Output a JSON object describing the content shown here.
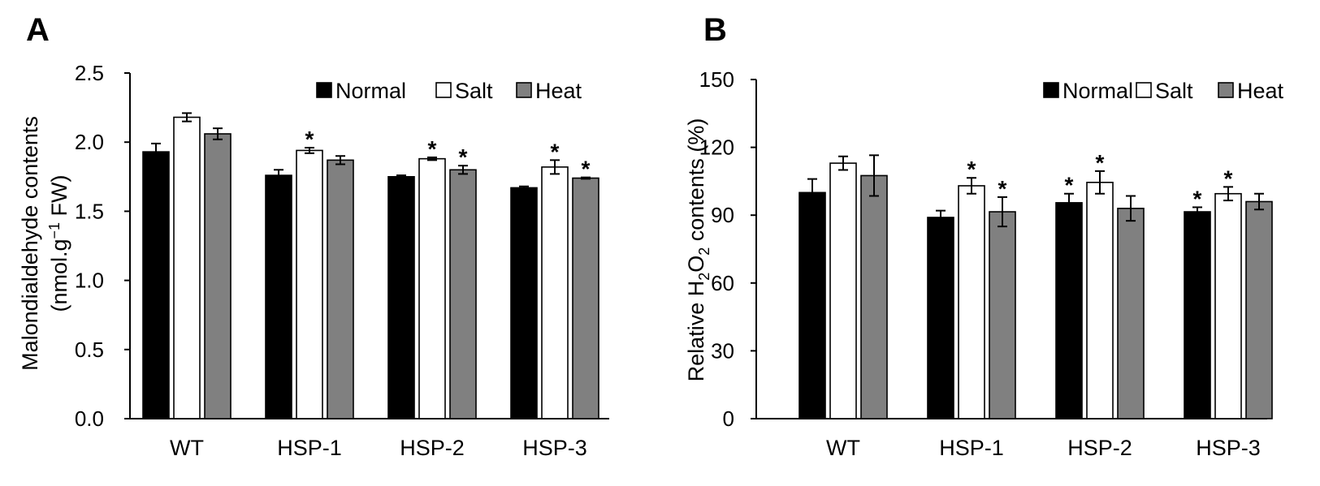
{
  "chart_data": [
    {
      "type": "bar",
      "panel_label": "A",
      "title": "",
      "categories": [
        "WT",
        "HSP-1",
        "HSP-2",
        "HSP-3"
      ],
      "xlabel": "",
      "ylabel_line1": "Malondialdehyde contents",
      "ylabel_line2_pre": "(nmol.g",
      "ylabel_line2_sup": "−1",
      "ylabel_line2_post": " FW)",
      "ylim": [
        0,
        2.5
      ],
      "yticks": [
        0,
        0.5,
        1.0,
        1.5,
        2.0,
        2.5
      ],
      "ytick_labels": [
        "0.0",
        "0.5",
        "1.0",
        "1.5",
        "2.0",
        "2.5"
      ],
      "legend_position": "top-right",
      "series": [
        {
          "name": "Normal",
          "color": "#000000",
          "values": [
            1.93,
            1.76,
            1.75,
            1.67
          ],
          "errors": [
            0.06,
            0.04,
            0.01,
            0.01
          ],
          "significant": [
            false,
            false,
            false,
            false
          ]
        },
        {
          "name": "Salt",
          "color": "#ffffff",
          "values": [
            2.18,
            1.94,
            1.88,
            1.82
          ],
          "errors": [
            0.03,
            0.02,
            0.01,
            0.05
          ],
          "significant": [
            false,
            true,
            true,
            true
          ]
        },
        {
          "name": "Heat",
          "color": "#808080",
          "values": [
            2.06,
            1.87,
            1.8,
            1.74
          ],
          "errors": [
            0.04,
            0.03,
            0.03,
            0.005
          ],
          "significant": [
            false,
            false,
            true,
            true
          ]
        }
      ],
      "significance_marker": "*"
    },
    {
      "type": "bar",
      "panel_label": "B",
      "title": "",
      "categories": [
        "WT",
        "HSP-1",
        "HSP-2",
        "HSP-3"
      ],
      "xlabel": "",
      "ylabel_pre": "Relative H",
      "ylabel_sub1": "2",
      "ylabel_mid": "O",
      "ylabel_sub2": "2",
      "ylabel_post": " contents (%)",
      "ylim": [
        0,
        150
      ],
      "yticks": [
        0,
        30,
        60,
        90,
        120,
        150
      ],
      "ytick_labels": [
        "0",
        "30",
        "60",
        "90",
        "120",
        "150"
      ],
      "legend_position": "top-right",
      "series": [
        {
          "name": "Normal",
          "color": "#000000",
          "values": [
            100,
            89,
            95.5,
            91.5
          ],
          "errors": [
            6,
            3,
            4,
            2
          ],
          "significant": [
            false,
            false,
            true,
            true
          ]
        },
        {
          "name": "Salt",
          "color": "#ffffff",
          "values": [
            113,
            103,
            104.5,
            99.5
          ],
          "errors": [
            3,
            3.5,
            5,
            3
          ],
          "significant": [
            false,
            true,
            true,
            true
          ]
        },
        {
          "name": "Heat",
          "color": "#808080",
          "values": [
            107.5,
            91.5,
            93,
            96
          ],
          "errors": [
            9,
            6.5,
            5.5,
            3.5
          ],
          "significant": [
            false,
            true,
            false,
            false
          ]
        }
      ],
      "significance_marker": "*"
    }
  ]
}
